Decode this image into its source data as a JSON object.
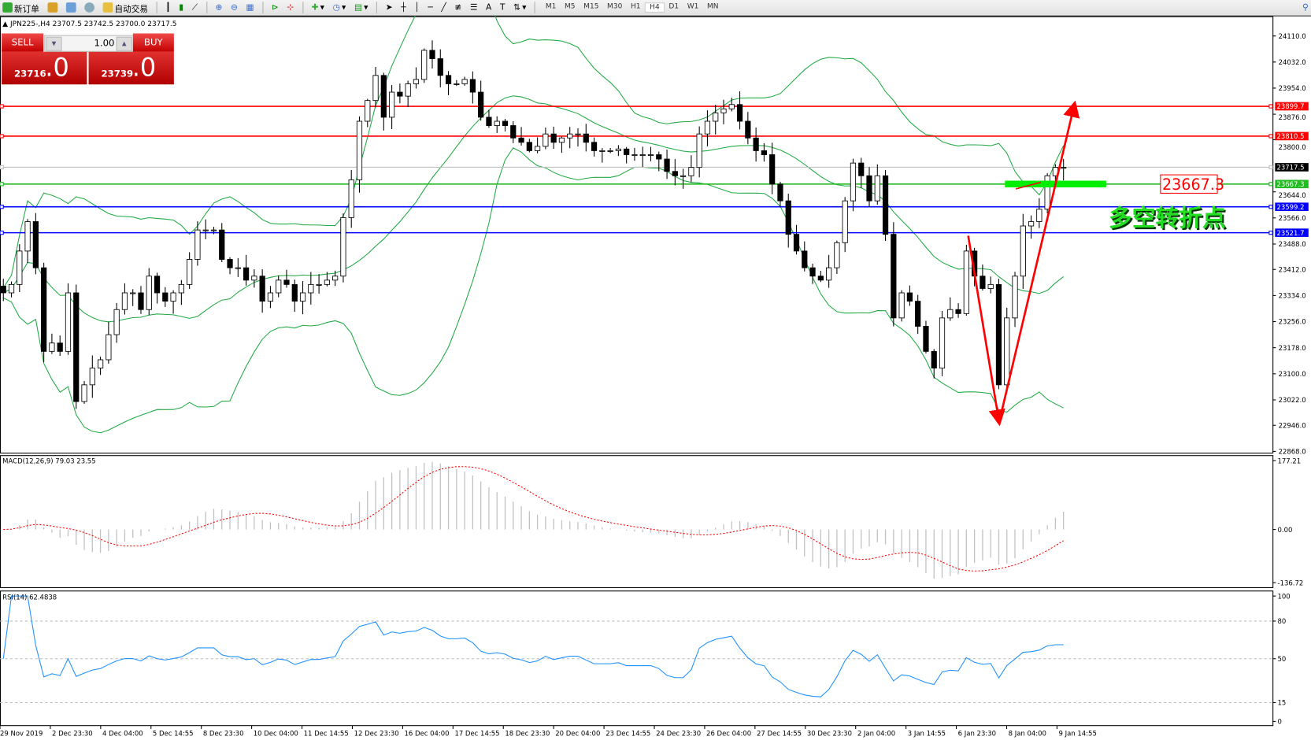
{
  "toolbar": {
    "new_order": "新订单",
    "auto_trading": "自动交易",
    "icons": [
      "new-order-icon",
      "market-watch-icon",
      "navigator-icon",
      "signals-icon",
      "auto-trading-icon",
      "bar-chart-icon",
      "candle-chart-icon",
      "line-chart-icon",
      "zoom-in-icon",
      "zoom-out-icon",
      "tile-windows-icon",
      "chart-shift-icon",
      "autoscroll-icon",
      "indicators-icon",
      "periods-icon",
      "templates-icon",
      "cursor-icon",
      "crosshair-icon",
      "vertical-line-icon",
      "horizontal-line-icon",
      "trendline-icon",
      "fibonacci-icon",
      "fibo-fan-icon",
      "text-icon",
      "text-label-icon",
      "arrows-icon"
    ],
    "timeframes": [
      "M1",
      "M5",
      "M15",
      "M30",
      "H1",
      "H4",
      "D1",
      "W1",
      "MN"
    ],
    "active_timeframe": "H4"
  },
  "symbol_info": "JPN225-,H4  23707.5 23742.5 23700.0 23717.5",
  "trade_panel": {
    "sell_label": "SELL",
    "buy_label": "BUY",
    "lot": "1.00",
    "sell_price_main": "23716",
    "sell_price_frac": ".0",
    "buy_price_main": "23739",
    "buy_price_frac": ".0"
  },
  "colors": {
    "bands": "#22aa44",
    "macd_hist": "#c0c0c0",
    "macd_signal": "#ff0000",
    "rsi": "#1e90ff"
  },
  "chart_data": [
    {
      "type": "candlestick",
      "symbol": "JPN225-",
      "timeframe": "H4",
      "ylim": [
        22868.0,
        24110.0
      ],
      "y_ticks": [
        "24110.0",
        "24032.0",
        "23954.0",
        "23876.0",
        "23800.0",
        "23644.0",
        "23566.0",
        "23488.0",
        "23412.0",
        "23334.0",
        "23256.0",
        "23178.0",
        "23100.0",
        "23022.0",
        "22946.0",
        "22868.0"
      ],
      "x_ticks": [
        "29 Nov 2019",
        "2 Dec 23:30",
        "4 Dec 04:00",
        "5 Dec 14:55",
        "8 Dec 23:30",
        "10 Dec 04:00",
        "11 Dec 14:55",
        "12 Dec 23:30",
        "16 Dec 04:00",
        "17 Dec 14:55",
        "18 Dec 23:30",
        "20 Dec 04:00",
        "23 Dec 14:55",
        "24 Dec 23:30",
        "26 Dec 04:00",
        "27 Dec 14:55",
        "30 Dec 23:30",
        "2 Jan 04:00",
        "3 Jan 14:55",
        "6 Jan 23:30",
        "8 Jan 04:00",
        "9 Jan 14:55"
      ],
      "closes": [
        23342,
        23367,
        23467,
        23555,
        23417,
        23167,
        23192,
        23167,
        23342,
        23017,
        23067,
        23117,
        23142,
        23217,
        23292,
        23342,
        23342,
        23292,
        23392,
        23342,
        23317,
        23342,
        23367,
        23442,
        23530,
        23530,
        23530,
        23442,
        23417,
        23417,
        23380,
        23392,
        23317,
        23342,
        23380,
        23367,
        23317,
        23342,
        23367,
        23367,
        23380,
        23392,
        23567,
        23680,
        23855,
        23917,
        23992,
        23867,
        23942,
        23930,
        23967,
        23980,
        24067,
        24042,
        23992,
        23967,
        23967,
        23980,
        23942,
        23867,
        23842,
        23855,
        23842,
        23805,
        23792,
        23767,
        23780,
        23817,
        23792,
        23805,
        23817,
        23817,
        23792,
        23767,
        23767,
        23767,
        23772,
        23755,
        23755,
        23755,
        23755,
        23742,
        23705,
        23692,
        23692,
        23717,
        23817,
        23855,
        23880,
        23892,
        23905,
        23855,
        23805,
        23767,
        23755,
        23667,
        23617,
        23517,
        23467,
        23417,
        23392,
        23380,
        23417,
        23492,
        23617,
        23730,
        23692,
        23617,
        23692,
        23517,
        23267,
        23342,
        23317,
        23242,
        23167,
        23117,
        23267,
        23292,
        23280,
        23467,
        23392,
        23355,
        23367,
        23067,
        23267,
        23392,
        23542,
        23555,
        23592,
        23692,
        23717,
        23717
      ],
      "indicator": "Bollinger Bands",
      "levels": [
        {
          "value": 23899.7,
          "label": "23899.7",
          "color": "#ff0000"
        },
        {
          "value": 23810.5,
          "label": "23810.5",
          "color": "#ff0000"
        },
        {
          "value": 23717.5,
          "label": "23717.5",
          "color": "#000000"
        },
        {
          "value": 23667.3,
          "label": "23667.3",
          "color": "#22bb22"
        },
        {
          "value": 23599.2,
          "label": "23599.2",
          "color": "#0000ff"
        },
        {
          "value": 23521.7,
          "label": "23521.7",
          "color": "#0000ff"
        }
      ],
      "annotations": {
        "price_box": "23667.3",
        "chinese_label": "多空转折点"
      }
    },
    {
      "type": "bar",
      "title": "MACD(12,26,9) 79.03 23.55",
      "ylim": [
        -136.72,
        177.21
      ],
      "y_ticks": [
        "177.21",
        "0.00",
        "-136.72"
      ]
    },
    {
      "type": "line",
      "title": "RSI(14) 62.4838",
      "ylim": [
        0,
        100
      ],
      "y_ticks": [
        "100",
        "80",
        "50",
        "15",
        "0"
      ],
      "levels": [
        80,
        50,
        15
      ]
    }
  ]
}
